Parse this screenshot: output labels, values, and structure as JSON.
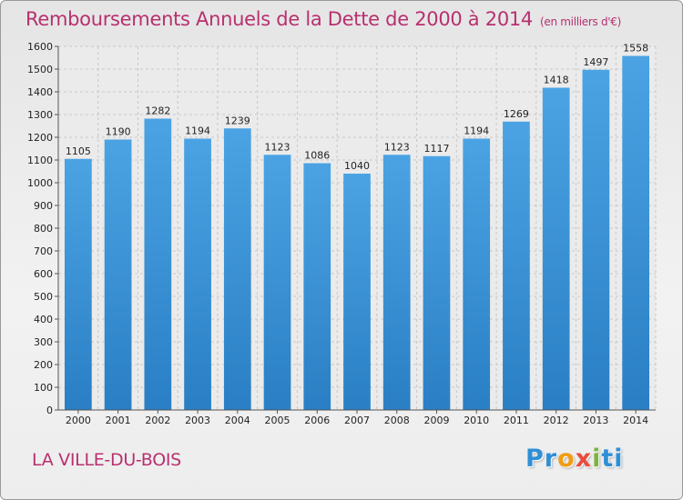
{
  "chart_data": {
    "type": "bar",
    "title": "Remboursements Annuels de la Dette de 2000 à 2014",
    "unit_label": "(en milliers d'€)",
    "categories": [
      "2000",
      "2001",
      "2002",
      "2003",
      "2004",
      "2005",
      "2006",
      "2007",
      "2008",
      "2009",
      "2010",
      "2011",
      "2012",
      "2013",
      "2014"
    ],
    "values": [
      1105,
      1190,
      1282,
      1194,
      1239,
      1123,
      1086,
      1040,
      1123,
      1117,
      1194,
      1269,
      1418,
      1497,
      1558
    ],
    "ylim": [
      0,
      1600
    ],
    "ytick_step": 100,
    "grid": true,
    "xlabel": "",
    "ylabel": "",
    "bar_color": "#4ba3e3",
    "bar_color_dark": "#2a7fc4"
  },
  "footer": {
    "city": "LA VILLE-DU-BOIS",
    "logo_letters": [
      "P",
      "r",
      "o",
      "x",
      "i",
      "ti"
    ]
  }
}
